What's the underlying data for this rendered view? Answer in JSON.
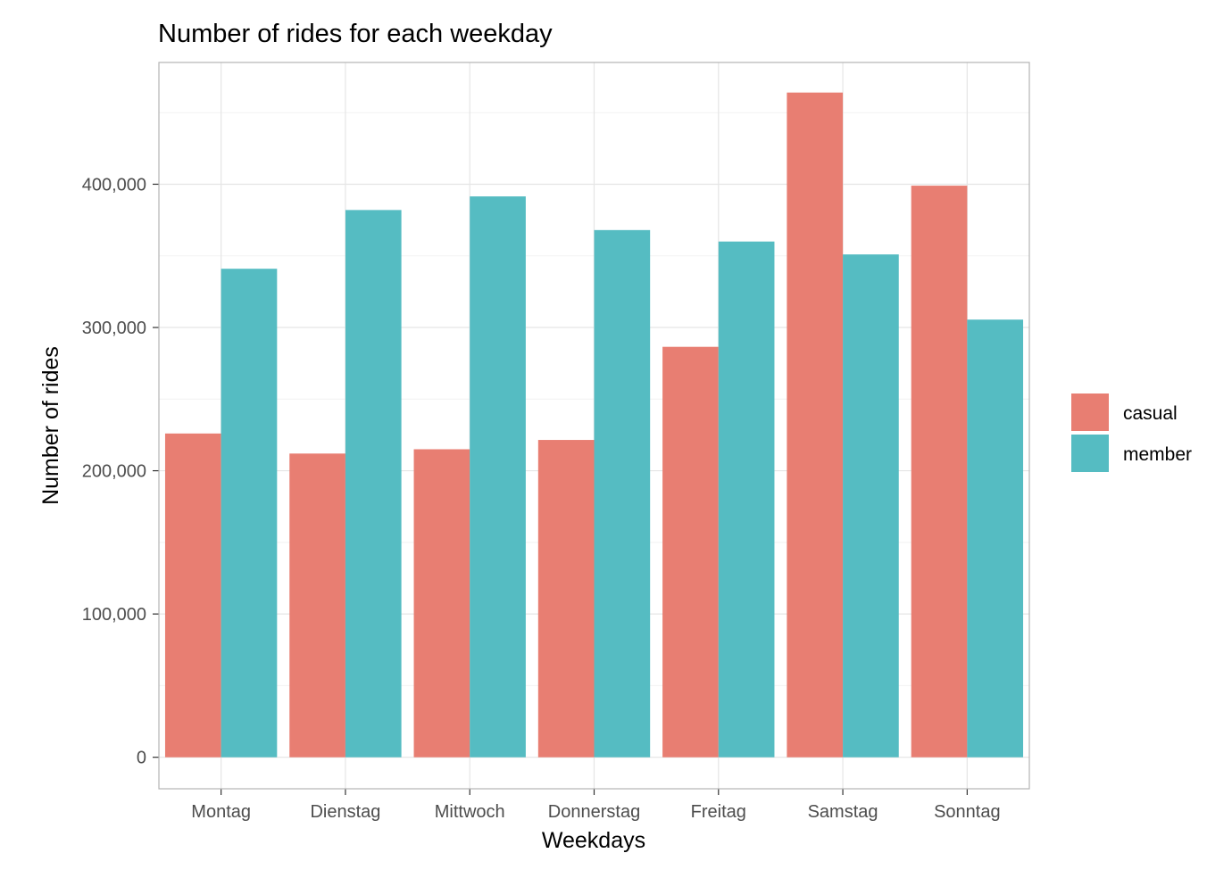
{
  "chart_data": {
    "type": "bar",
    "title": "Number of rides for each weekday",
    "xlabel": "Weekdays",
    "ylabel": "Number of rides",
    "categories": [
      "Montag",
      "Dienstag",
      "Mittwoch",
      "Donnerstag",
      "Freitag",
      "Samstag",
      "Sonntag"
    ],
    "series": [
      {
        "name": "casual",
        "color": "#E87E72",
        "values": [
          226000,
          212000,
          215000,
          221500,
          286500,
          464000,
          399000
        ]
      },
      {
        "name": "member",
        "color": "#55BCC2",
        "values": [
          341000,
          382000,
          391500,
          368000,
          360000,
          351000,
          305500
        ]
      }
    ],
    "ylim": [
      -22000,
      485000
    ],
    "yticks": [
      0,
      100000,
      200000,
      300000,
      400000
    ],
    "ytick_labels": [
      "0",
      "100,000",
      "200,000",
      "300,000",
      "400,000"
    ],
    "grid": true,
    "legend_position": "right"
  }
}
